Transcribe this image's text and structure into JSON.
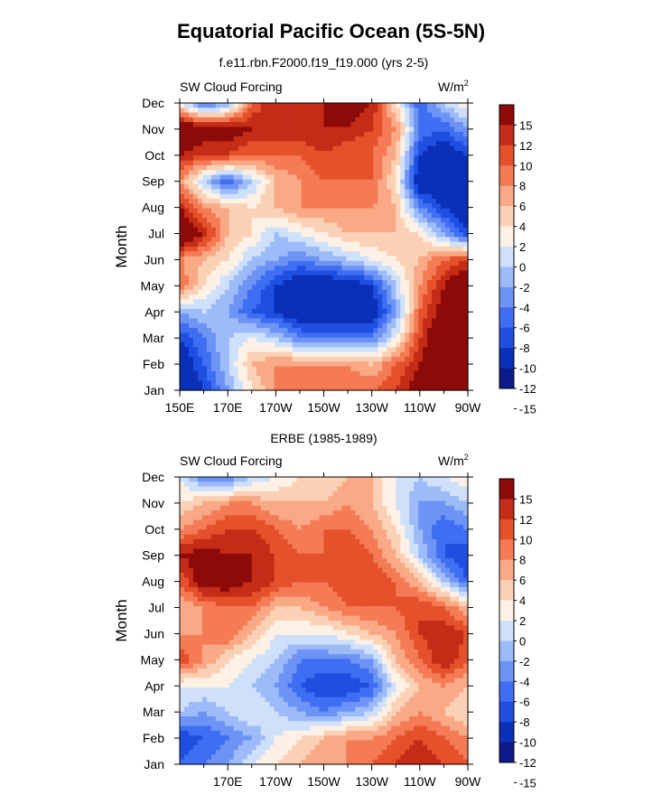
{
  "figure_title": "Equatorial Pacific Ocean (5S-5N)",
  "panels": [
    {
      "subtitle": "f.e11.rbn.F2000.f19_f19.000 (yrs 2-5)",
      "left_label": "SW Cloud Forcing",
      "unit_base": "W/m",
      "unit_exp": "2"
    },
    {
      "subtitle": "ERBE (1985-1989)",
      "left_label": "SW Cloud Forcing",
      "unit_base": "W/m",
      "unit_exp": "2"
    }
  ],
  "colors": [
    "#0d1a8a",
    "#0a2fb8",
    "#1f4fe0",
    "#3f6ef2",
    "#6d94f5",
    "#9dbbf8",
    "#cfe0fb",
    "#fdf1e6",
    "#fbd1b6",
    "#f9a986",
    "#f47b55",
    "#e4512b",
    "#c52c17",
    "#8c0a08"
  ],
  "chart_data": [
    {
      "type": "heatmap",
      "title": "f.e11.rbn.F2000.f19_f19.000 (yrs 2-5)",
      "label": "SW Cloud Forcing",
      "units": "W/m2",
      "xlabel": "",
      "ylabel": "Month",
      "xlim": [
        150,
        270
      ],
      "x_ticks": [
        150,
        170,
        190,
        210,
        230,
        250,
        270
      ],
      "x_tick_labels": [
        "150E",
        "170E",
        "170W",
        "150W",
        "130W",
        "110W",
        "90W"
      ],
      "y_tick_labels": [
        "Jan",
        "Feb",
        "Mar",
        "Apr",
        "May",
        "Jun",
        "Jul",
        "Aug",
        "Sep",
        "Oct",
        "Nov",
        "Dec"
      ],
      "levels": [
        -15,
        -12,
        -10,
        -8,
        -6,
        -4,
        -2,
        0,
        2,
        4,
        6,
        8,
        10,
        12,
        15
      ],
      "colorbar_labels": [
        "15",
        "12",
        "10",
        "8",
        "6",
        "4",
        "2",
        "0",
        "-2",
        "-4",
        "-6",
        "-8",
        "-10",
        "-12",
        "-15"
      ],
      "x": [
        150,
        160,
        170,
        180,
        190,
        200,
        210,
        220,
        230,
        240,
        250,
        260,
        270
      ],
      "z": [
        [
          -15,
          -12,
          -6,
          0,
          4,
          6,
          6,
          6,
          6,
          8,
          12,
          15,
          15
        ],
        [
          -15,
          -10,
          -4,
          2,
          4,
          4,
          4,
          4,
          2,
          6,
          10,
          15,
          15
        ],
        [
          -12,
          -8,
          -4,
          -2,
          -4,
          -8,
          -8,
          -8,
          -8,
          -2,
          8,
          15,
          15
        ],
        [
          -6,
          -4,
          -6,
          -10,
          -12,
          -15,
          -15,
          -15,
          -15,
          -6,
          6,
          12,
          15
        ],
        [
          6,
          0,
          -4,
          -8,
          -12,
          -15,
          -15,
          -15,
          -12,
          -4,
          4,
          10,
          15
        ],
        [
          4,
          2,
          0,
          -4,
          -6,
          -8,
          -6,
          -4,
          -2,
          0,
          2,
          6,
          8
        ],
        [
          15,
          10,
          2,
          0,
          -4,
          -2,
          0,
          2,
          2,
          2,
          0,
          -6,
          -12
        ],
        [
          10,
          4,
          2,
          0,
          2,
          4,
          4,
          4,
          4,
          2,
          -8,
          -12,
          -15
        ],
        [
          4,
          -4,
          -10,
          -4,
          2,
          4,
          6,
          6,
          6,
          0,
          -15,
          -15,
          -15
        ],
        [
          10,
          8,
          8,
          6,
          6,
          6,
          8,
          6,
          6,
          2,
          -12,
          -15,
          -12
        ],
        [
          15,
          12,
          12,
          10,
          10,
          10,
          10,
          10,
          8,
          4,
          -8,
          -10,
          -6
        ],
        [
          -2,
          -10,
          -6,
          6,
          10,
          8,
          10,
          12,
          10,
          0,
          -10,
          -4,
          0
        ]
      ]
    },
    {
      "type": "heatmap",
      "title": "ERBE (1985-1989)",
      "label": "SW Cloud Forcing",
      "units": "W/m2",
      "xlabel": "",
      "ylabel": "Month",
      "xlim": [
        150,
        270
      ],
      "x_ticks": [
        170,
        190,
        210,
        230,
        250,
        270
      ],
      "x_tick_labels": [
        "170E",
        "170W",
        "150W",
        "130W",
        "110W",
        "90W"
      ],
      "y_tick_labels": [
        "Jan",
        "Feb",
        "Mar",
        "Apr",
        "May",
        "Jun",
        "Jul",
        "Aug",
        "Sep",
        "Oct",
        "Nov",
        "Dec"
      ],
      "levels": [
        -15,
        -12,
        -10,
        -8,
        -6,
        -4,
        -2,
        0,
        2,
        4,
        6,
        8,
        10,
        12,
        15
      ],
      "colorbar_labels": [
        "15",
        "12",
        "10",
        "8",
        "6",
        "4",
        "2",
        "0",
        "-2",
        "-4",
        "-6",
        "-8",
        "-10",
        "-12",
        "-15"
      ],
      "x": [
        150,
        160,
        170,
        180,
        190,
        200,
        210,
        220,
        230,
        240,
        250,
        260,
        270
      ],
      "z": [
        [
          -10,
          -8,
          -6,
          -2,
          0,
          2,
          4,
          4,
          6,
          8,
          10,
          8,
          6
        ],
        [
          -12,
          -10,
          -8,
          -6,
          -2,
          0,
          2,
          4,
          4,
          6,
          8,
          6,
          4
        ],
        [
          -4,
          -6,
          -4,
          -2,
          -4,
          -6,
          -8,
          -6,
          -4,
          2,
          4,
          2,
          0
        ],
        [
          -2,
          -2,
          -2,
          -4,
          -6,
          -10,
          -12,
          -12,
          -10,
          -2,
          2,
          4,
          2
        ],
        [
          8,
          4,
          0,
          -2,
          -4,
          -8,
          -8,
          -8,
          -6,
          2,
          6,
          10,
          6
        ],
        [
          4,
          4,
          6,
          2,
          -2,
          -2,
          -2,
          0,
          2,
          4,
          8,
          10,
          8
        ],
        [
          2,
          4,
          6,
          6,
          2,
          2,
          4,
          6,
          6,
          6,
          8,
          6,
          2
        ],
        [
          6,
          12,
          12,
          10,
          8,
          6,
          6,
          8,
          8,
          6,
          2,
          -4,
          -10
        ],
        [
          10,
          12,
          10,
          10,
          8,
          6,
          6,
          8,
          6,
          2,
          -4,
          -10,
          -12
        ],
        [
          4,
          6,
          8,
          8,
          6,
          4,
          6,
          6,
          4,
          0,
          -6,
          -10,
          -8
        ],
        [
          0,
          2,
          4,
          4,
          2,
          2,
          2,
          4,
          2,
          -2,
          -6,
          -6,
          -4
        ],
        [
          -2,
          -8,
          -8,
          -4,
          -2,
          0,
          0,
          2,
          2,
          -2,
          -4,
          -2,
          0
        ]
      ]
    }
  ]
}
